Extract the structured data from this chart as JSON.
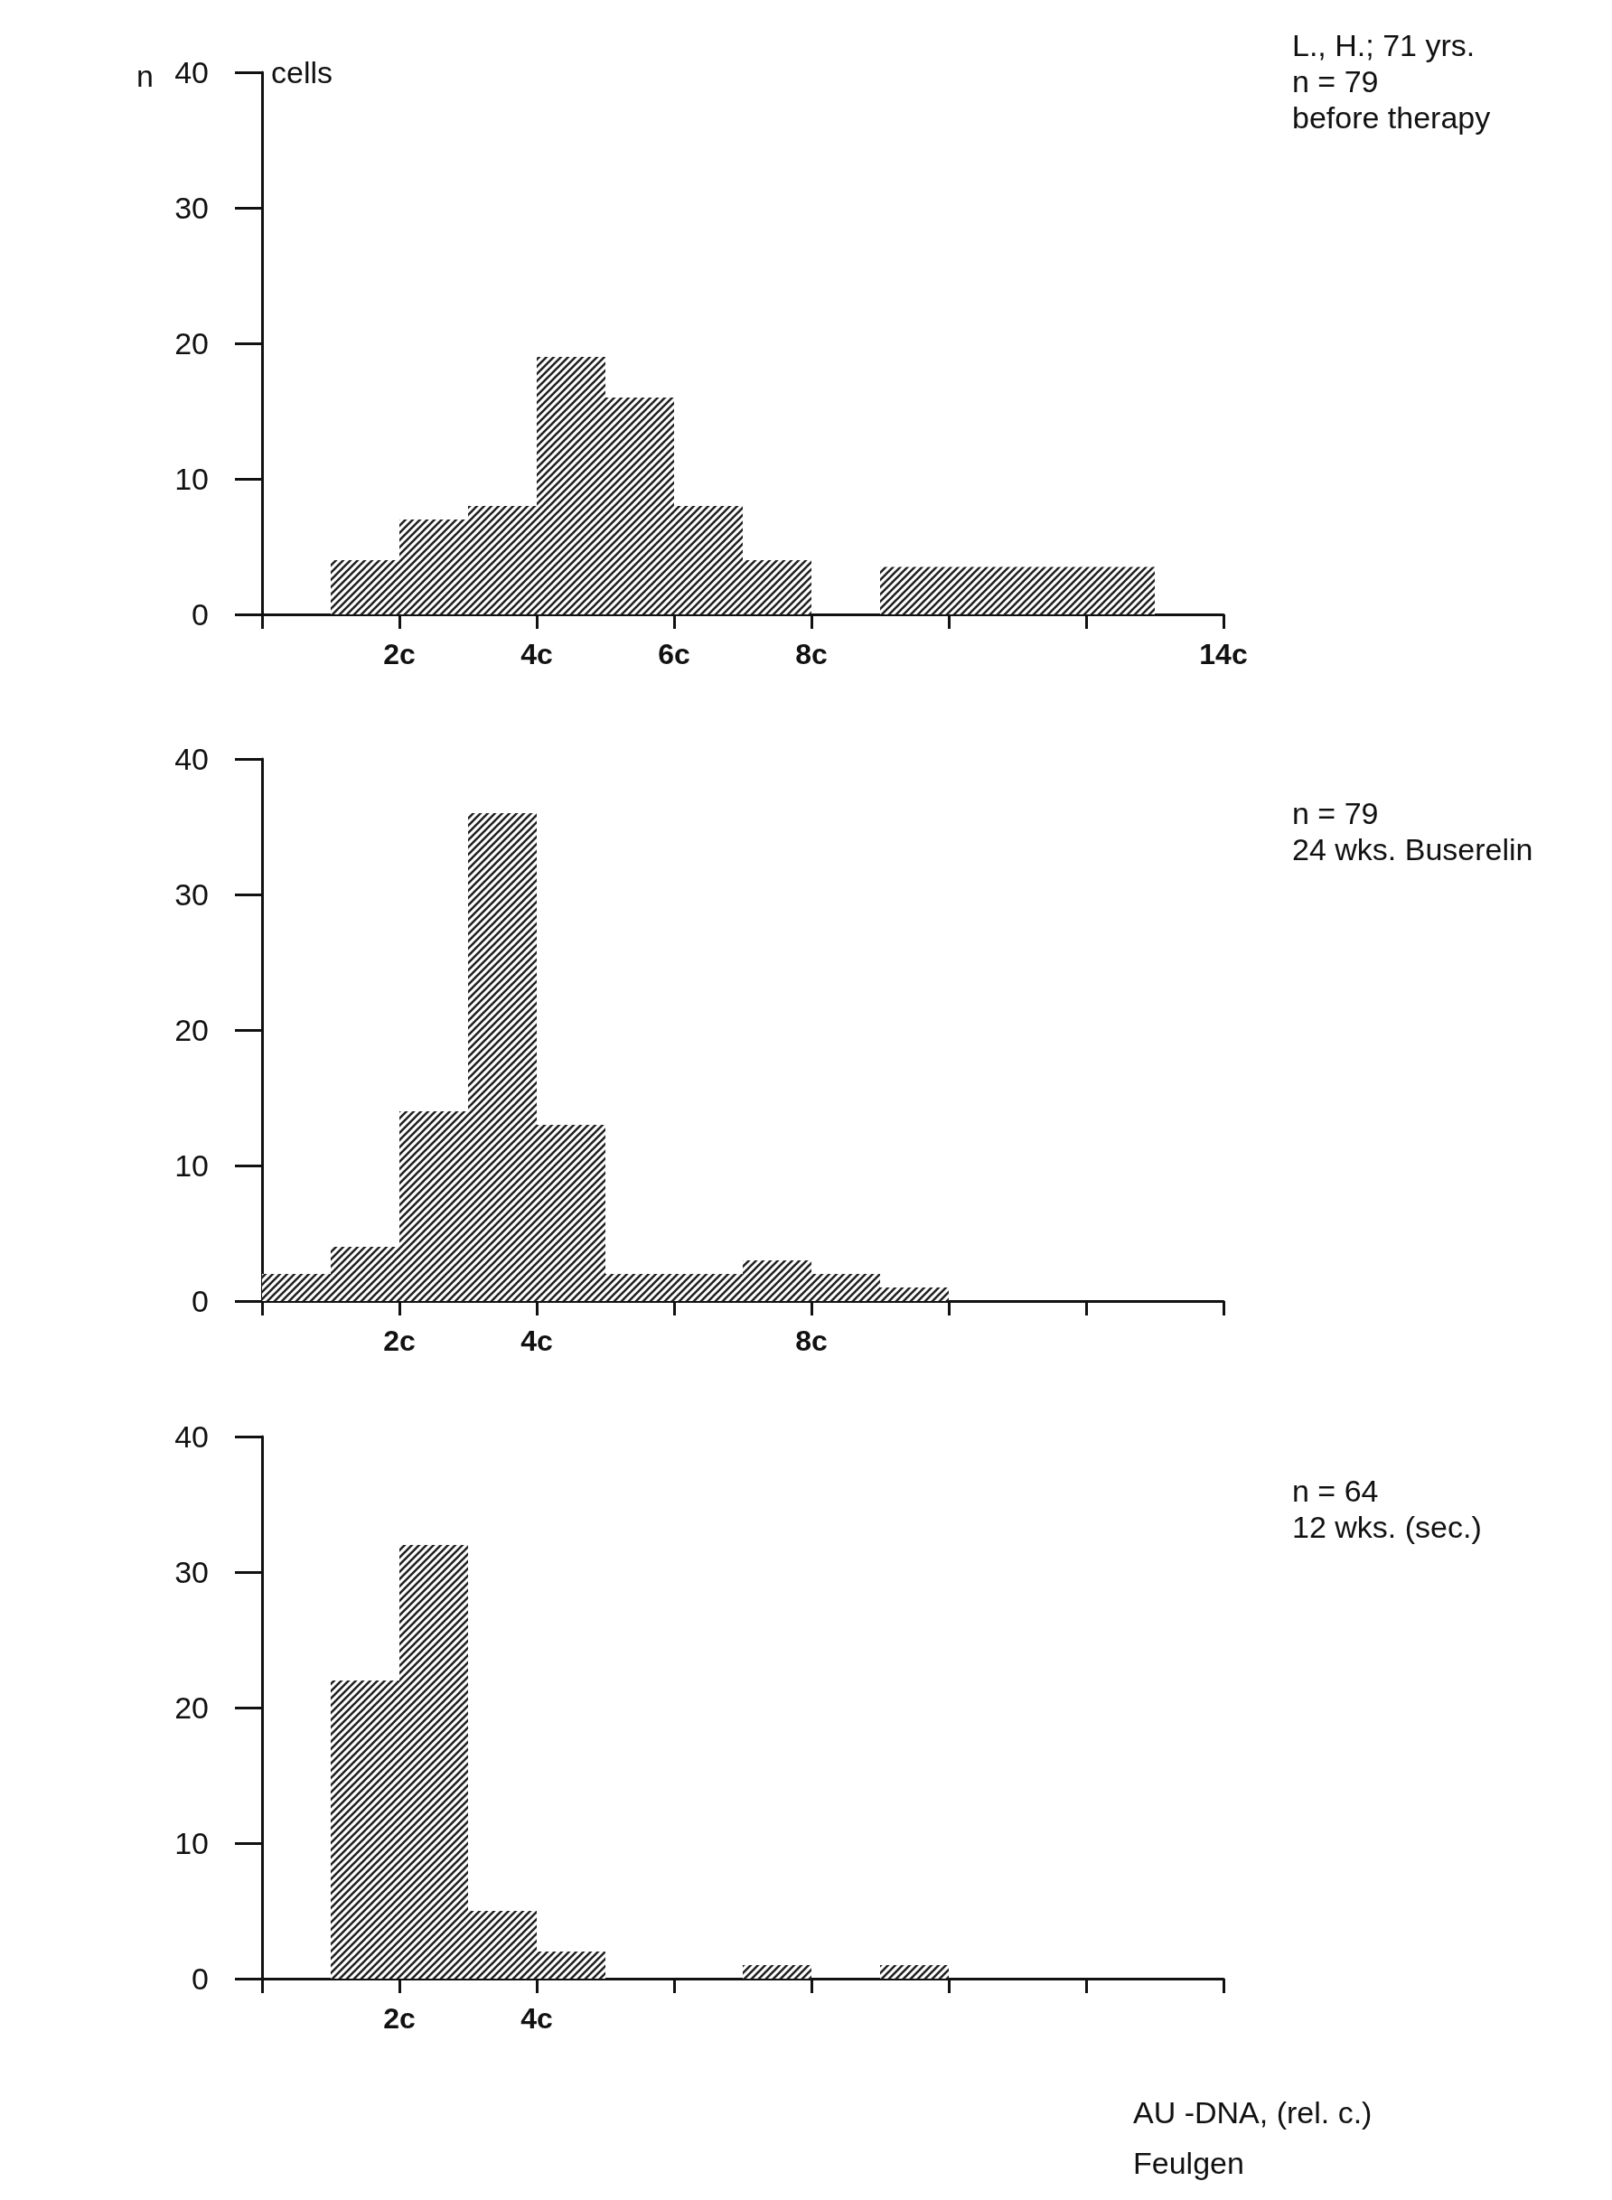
{
  "chart_data": [
    {
      "type": "histogram",
      "ylabel": "n",
      "annotations": [
        "cells",
        "L., H.; 71 yrs.\nn = 79\nbefore therapy"
      ],
      "bins": [
        1,
        2,
        3,
        4,
        5,
        6,
        7,
        8,
        9,
        13
      ],
      "values": [
        4,
        7,
        8,
        19,
        16,
        8,
        4,
        0,
        3.5
      ],
      "color": "#222222",
      "xlim": [
        0,
        14
      ],
      "xticks": [
        {
          "value": 0,
          "label": null
        },
        {
          "value": 2,
          "label": "2c"
        },
        {
          "value": 4,
          "label": "4c"
        },
        {
          "value": 6,
          "label": "6c"
        },
        {
          "value": 8,
          "label": "8c"
        },
        {
          "value": 10,
          "label": null
        },
        {
          "value": 12,
          "label": null
        },
        {
          "value": 14,
          "label": "14c"
        }
      ],
      "ylim": [
        0,
        40
      ],
      "yticks": [
        0,
        10,
        20,
        30,
        40
      ],
      "grid": false
    },
    {
      "type": "histogram",
      "annotations": [
        "n = 79\n24 wks. Buserelin"
      ],
      "bins": [
        0,
        1,
        2,
        3,
        4,
        5,
        6,
        7,
        8,
        9,
        10
      ],
      "values": [
        2,
        4,
        14,
        36,
        13,
        2,
        2,
        3,
        2,
        1
      ],
      "color": "#222222",
      "xlim": [
        0,
        14
      ],
      "xticks": [
        {
          "value": 0,
          "label": null
        },
        {
          "value": 2,
          "label": "2c"
        },
        {
          "value": 4,
          "label": "4c"
        },
        {
          "value": 6,
          "label": null
        },
        {
          "value": 8,
          "label": "8c"
        },
        {
          "value": 10,
          "label": null
        },
        {
          "value": 12,
          "label": null
        },
        {
          "value": 14,
          "label": null
        }
      ],
      "ylim": [
        0,
        40
      ],
      "yticks": [
        0,
        10,
        20,
        30,
        40
      ],
      "grid": false
    },
    {
      "type": "histogram",
      "xlabel": "AU -DNA, (rel. c.)\nFeulgen",
      "annotations": [
        "n = 64\n12 wks. (sec.)"
      ],
      "bins": [
        1,
        2,
        3,
        4,
        5,
        6,
        7,
        8,
        9,
        10
      ],
      "values": [
        22,
        32,
        5,
        2,
        0,
        0,
        1,
        0,
        1
      ],
      "color": "#222222",
      "xlim": [
        0,
        14
      ],
      "xticks": [
        {
          "value": 0,
          "label": null
        },
        {
          "value": 2,
          "label": "2c"
        },
        {
          "value": 4,
          "label": "4c"
        },
        {
          "value": 6,
          "label": null
        },
        {
          "value": 8,
          "label": null
        },
        {
          "value": 10,
          "label": null
        },
        {
          "value": 12,
          "label": null
        },
        {
          "value": 14,
          "label": null
        }
      ],
      "ylim": [
        0,
        40
      ],
      "yticks": [
        0,
        10,
        20,
        30,
        40
      ],
      "grid": false
    }
  ]
}
